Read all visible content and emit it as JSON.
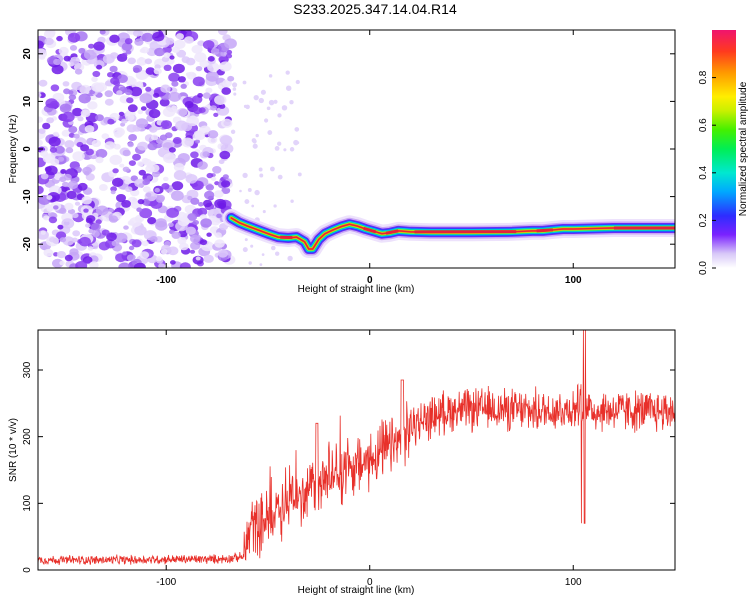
{
  "title": "S233.2025.347.14.04.R14",
  "colors": {
    "snr_line": "#e8302a",
    "ridge": "#e6223a",
    "scatter": "#8a3ff0"
  },
  "chart_data": [
    {
      "type": "heatmap",
      "title": "S233.2025.347.14.04.R14",
      "xlabel": "Height of straight line (km)",
      "ylabel": "Frequency (Hz)",
      "xlim": [
        -163,
        150
      ],
      "ylim": [
        -25,
        25
      ],
      "x_ticks": [
        -100,
        0,
        100
      ],
      "y_ticks": [
        -20,
        -10,
        0,
        10,
        20
      ],
      "colorbar": {
        "label": "Normalized spectral amplitude",
        "range": [
          0,
          1
        ],
        "ticks": [
          "0.0",
          "0.2",
          "0.4",
          "0.6",
          "0.8"
        ]
      },
      "noise_region_x": [
        -163,
        -68
      ],
      "ridge": {
        "x": [
          -68,
          -64,
          -60,
          -55,
          -50,
          -45,
          -40,
          -36,
          -32,
          -30,
          -28,
          -25,
          -22,
          -18,
          -14,
          -10,
          -6,
          -2,
          2,
          6,
          10,
          14,
          20,
          30,
          50,
          70,
          80,
          85,
          90,
          95,
          100,
          110,
          120,
          150
        ],
        "y": [
          -14.5,
          -15.5,
          -16.2,
          -17,
          -17.8,
          -18.5,
          -18.7,
          -18.5,
          -19.5,
          -21,
          -21,
          -19,
          -17.8,
          -17,
          -16.3,
          -15.8,
          -16.2,
          -16.8,
          -17.3,
          -17.8,
          -17.6,
          -17.2,
          -17.4,
          -17.5,
          -17.5,
          -17.4,
          -17.2,
          -17.2,
          -17.0,
          -16.8,
          -16.8,
          -16.7,
          -16.6,
          -16.6
        ]
      },
      "grid": false
    },
    {
      "type": "line",
      "xlabel": "Height of straight line (km)",
      "ylabel": "SNR (10 * v/v)",
      "xlim": [
        -163,
        150
      ],
      "ylim": [
        0,
        360
      ],
      "x_ticks": [
        -100,
        0,
        100
      ],
      "y_ticks": [
        0,
        100,
        200,
        300
      ],
      "series": [
        {
          "x": [
            -163,
            -140,
            -120,
            -100,
            -80,
            -70,
            -62,
            -58,
            -55,
            -50,
            -40,
            -30,
            -20,
            -10,
            0,
            10,
            16,
            20,
            30,
            40,
            50,
            60,
            70,
            80,
            90,
            100,
            105,
            110,
            120,
            130,
            140,
            150
          ],
          "y": [
            15,
            15,
            15,
            16,
            16,
            17,
            20,
            70,
            65,
            80,
            100,
            120,
            140,
            150,
            165,
            185,
            190,
            215,
            230,
            240,
            240,
            242,
            240,
            238,
            240,
            242,
            250,
            238,
            240,
            238,
            238,
            240
          ]
        }
      ],
      "grid": false
    }
  ]
}
